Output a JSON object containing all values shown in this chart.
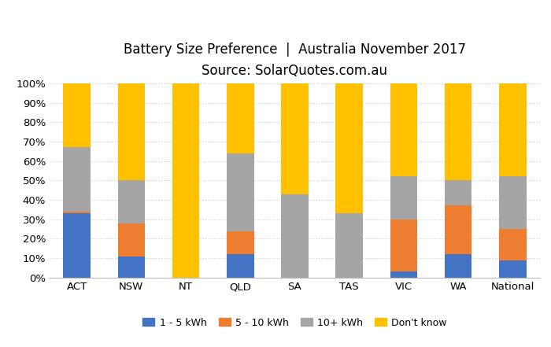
{
  "categories": [
    "ACT",
    "NSW",
    "NT",
    "QLD",
    "SA",
    "TAS",
    "VIC",
    "WA",
    "National"
  ],
  "series": {
    "1 - 5 kWh": [
      33,
      11,
      0,
      12,
      0,
      0,
      3,
      12,
      9
    ],
    "5 - 10 kWh": [
      1,
      17,
      0,
      12,
      0,
      0,
      27,
      25,
      16
    ],
    "10+ kWh": [
      33,
      22,
      0,
      40,
      43,
      33,
      22,
      13,
      27
    ],
    "Don't know": [
      33,
      50,
      100,
      36,
      57,
      67,
      48,
      50,
      48
    ]
  },
  "colors": {
    "1 - 5 kWh": "#4472C4",
    "5 - 10 kWh": "#ED7D31",
    "10+ kWh": "#A5A5A5",
    "Don't know": "#FFC000"
  },
  "title_line1": "Battery Size Preference  |  Australia November 2017",
  "title_line2": "Source: SolarQuotes.com.au",
  "title_fontsize": 12,
  "subtitle_fontsize": 11,
  "ylim": [
    0,
    100
  ],
  "ytick_labels": [
    "0%",
    "10%",
    "20%",
    "30%",
    "40%",
    "50%",
    "60%",
    "70%",
    "80%",
    "90%",
    "100%"
  ],
  "ytick_values": [
    0,
    10,
    20,
    30,
    40,
    50,
    60,
    70,
    80,
    90,
    100
  ],
  "background_color": "#FFFFFF",
  "bar_width": 0.5,
  "grid_color": "#CCCCCC",
  "legend_ncol": 4
}
